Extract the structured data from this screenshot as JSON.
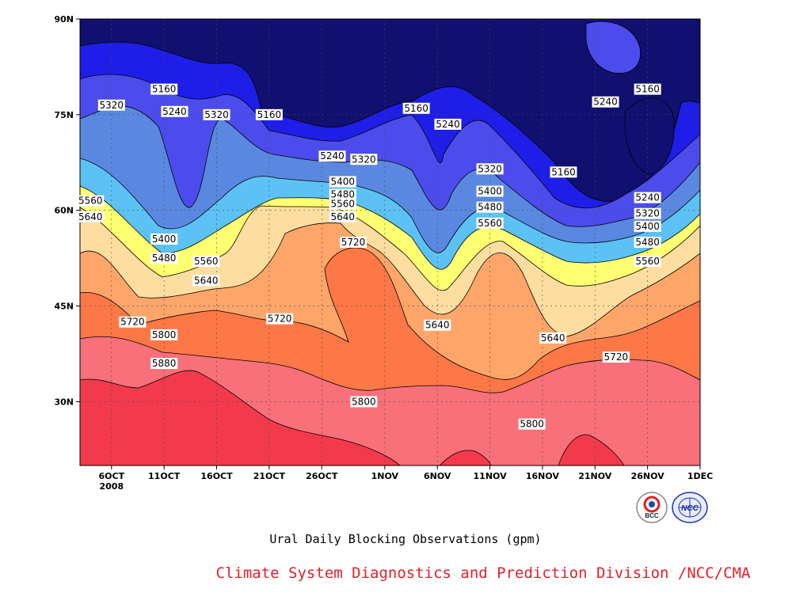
{
  "chart_data": {
    "type": "contour",
    "title": "",
    "subtitle": "Ural Daily Blocking Observations (gpm)",
    "credit": "Climate System Diagnostics and Prediction Division /NCC/CMA",
    "xlabel": "",
    "ylabel": "",
    "x_ticks": [
      "6OCT",
      "11OCT",
      "16OCT",
      "21OCT",
      "26OCT",
      "1NOV",
      "6NOV",
      "11NOV",
      "16NOV",
      "21NOV",
      "26NOV",
      "1DEC"
    ],
    "x_year_label": "2008",
    "y_ticks": [
      "30N",
      "45N",
      "60N",
      "75N",
      "90N"
    ],
    "xlim": [
      "2008-10-03",
      "2008-12-01"
    ],
    "ylim": [
      20,
      90
    ],
    "grid": true,
    "units": "gpm",
    "levels": [
      5160,
      5240,
      5320,
      5400,
      5480,
      5560,
      5640,
      5720,
      5800,
      5880
    ],
    "fill_colors": [
      "#101070",
      "#1e1ee8",
      "#4c4cec",
      "#5a88e0",
      "#5cc2f6",
      "#ffff72",
      "#fedea0",
      "#fea56a",
      "#fe7746",
      "#f87079",
      "#f23a4c"
    ],
    "contour_labels": [
      {
        "text": "5160",
        "date": "2008-10-11",
        "lat": 79
      },
      {
        "text": "5320",
        "date": "2008-10-06",
        "lat": 76.5
      },
      {
        "text": "5240",
        "date": "2008-10-12",
        "lat": 75.5
      },
      {
        "text": "5320",
        "date": "2008-10-16",
        "lat": 75
      },
      {
        "text": "5160",
        "date": "2008-10-21",
        "lat": 75
      },
      {
        "text": "5240",
        "date": "2008-10-27",
        "lat": 68.5
      },
      {
        "text": "5320",
        "date": "2008-10-30",
        "lat": 68
      },
      {
        "text": "5160",
        "date": "2008-11-04",
        "lat": 76
      },
      {
        "text": "5240",
        "date": "2008-11-07",
        "lat": 73.5
      },
      {
        "text": "5320",
        "date": "2008-11-11",
        "lat": 66.5
      },
      {
        "text": "5160",
        "date": "2008-11-18",
        "lat": 66
      },
      {
        "text": "5240",
        "date": "2008-11-22",
        "lat": 77
      },
      {
        "text": "5160",
        "date": "2008-11-26",
        "lat": 79
      },
      {
        "text": "5400",
        "date": "2008-10-28",
        "lat": 64.5
      },
      {
        "text": "5480",
        "date": "2008-10-28",
        "lat": 62.5
      },
      {
        "text": "5560",
        "date": "2008-10-28",
        "lat": 61
      },
      {
        "text": "5640",
        "date": "2008-10-28",
        "lat": 59
      },
      {
        "text": "5720",
        "date": "2008-10-29",
        "lat": 55
      },
      {
        "text": "5560",
        "date": "2008-10-04",
        "lat": 61.5
      },
      {
        "text": "5640",
        "date": "2008-10-04",
        "lat": 59
      },
      {
        "text": "5400",
        "date": "2008-10-11",
        "lat": 55.5
      },
      {
        "text": "5480",
        "date": "2008-10-11",
        "lat": 52.5
      },
      {
        "text": "5560",
        "date": "2008-10-15",
        "lat": 52
      },
      {
        "text": "5640",
        "date": "2008-10-15",
        "lat": 49
      },
      {
        "text": "5720",
        "date": "2008-10-08",
        "lat": 42.5
      },
      {
        "text": "5720",
        "date": "2008-10-22",
        "lat": 43
      },
      {
        "text": "5800",
        "date": "2008-10-11",
        "lat": 40.5
      },
      {
        "text": "5880",
        "date": "2008-10-11",
        "lat": 36
      },
      {
        "text": "5800",
        "date": "2008-10-30",
        "lat": 30
      },
      {
        "text": "5640",
        "date": "2008-11-06",
        "lat": 42
      },
      {
        "text": "5400",
        "date": "2008-11-11",
        "lat": 63
      },
      {
        "text": "5480",
        "date": "2008-11-11",
        "lat": 60.5
      },
      {
        "text": "5560",
        "date": "2008-11-11",
        "lat": 58
      },
      {
        "text": "5640",
        "date": "2008-11-17",
        "lat": 40
      },
      {
        "text": "5800",
        "date": "2008-11-15",
        "lat": 26.5
      },
      {
        "text": "5720",
        "date": "2008-11-23",
        "lat": 37
      },
      {
        "text": "5240",
        "date": "2008-11-26",
        "lat": 62
      },
      {
        "text": "5320",
        "date": "2008-11-26",
        "lat": 59.5
      },
      {
        "text": "5400",
        "date": "2008-11-26",
        "lat": 57.5
      },
      {
        "text": "5480",
        "date": "2008-11-26",
        "lat": 55
      },
      {
        "text": "5560",
        "date": "2008-11-26",
        "lat": 52
      }
    ]
  }
}
